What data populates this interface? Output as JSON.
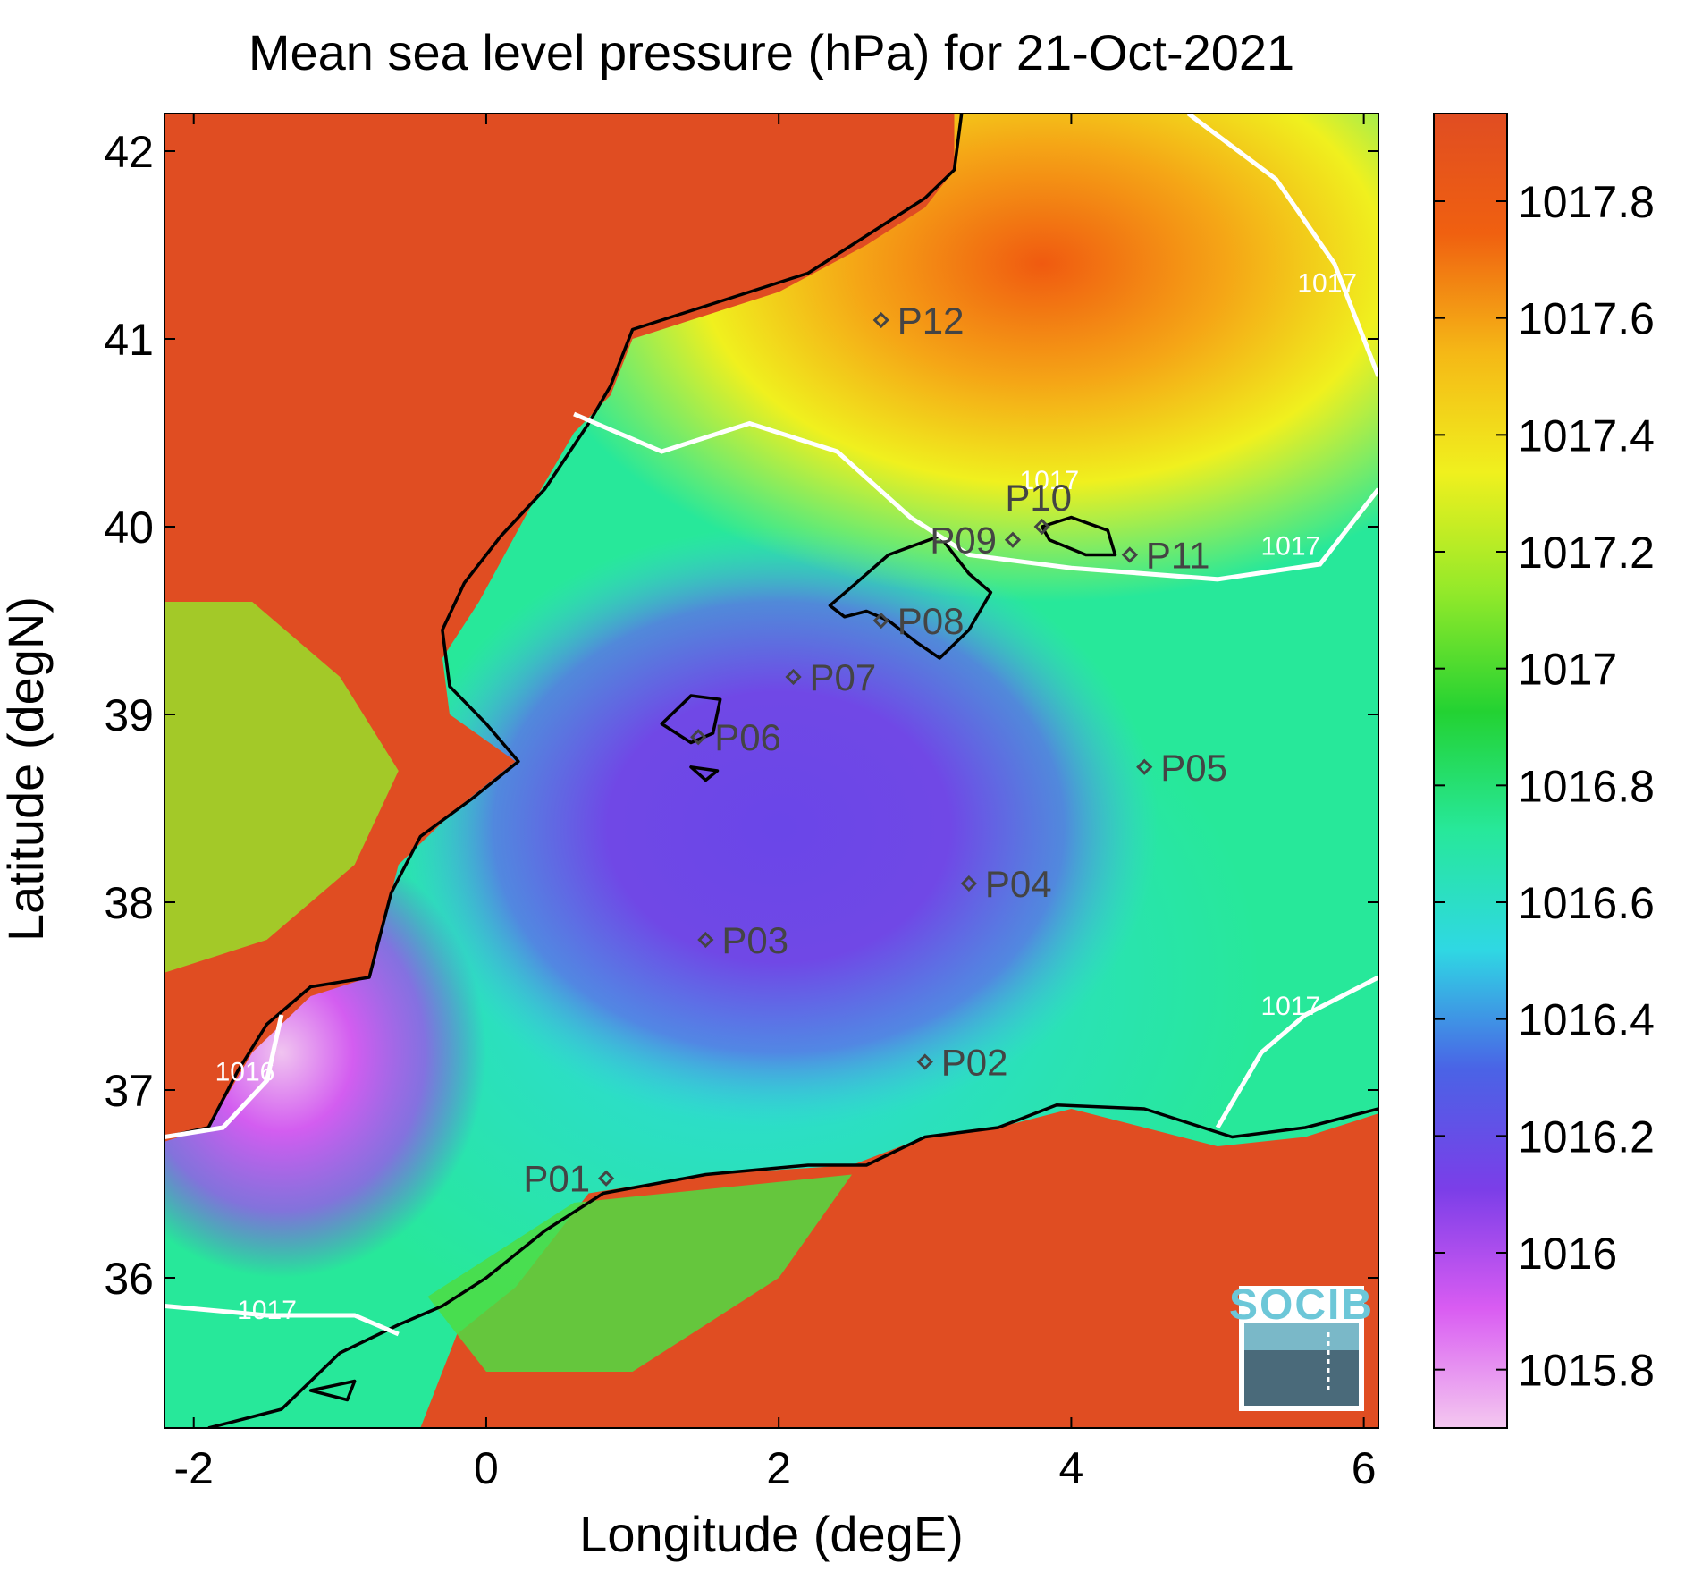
{
  "title": "Mean sea level pressure (hPa) for 21-Oct-2021",
  "x_axis": {
    "label": "Longitude (degE)",
    "range": [
      -2.2,
      6.1
    ],
    "ticks": [
      {
        "value": -2,
        "label": "-2"
      },
      {
        "value": 0,
        "label": "0"
      },
      {
        "value": 2,
        "label": "2"
      },
      {
        "value": 4,
        "label": "4"
      },
      {
        "value": 6,
        "label": "6"
      }
    ]
  },
  "y_axis": {
    "label": "Latitude (degN)",
    "range": [
      35.2,
      42.2
    ],
    "ticks": [
      {
        "value": 36,
        "label": "36"
      },
      {
        "value": 37,
        "label": "37"
      },
      {
        "value": 38,
        "label": "38"
      },
      {
        "value": 39,
        "label": "39"
      },
      {
        "value": 40,
        "label": "40"
      },
      {
        "value": 41,
        "label": "41"
      },
      {
        "value": 42,
        "label": "42"
      }
    ]
  },
  "colorbar": {
    "range": [
      1015.7,
      1017.95
    ],
    "ticks": [
      {
        "value": 1015.8,
        "label": "1015.8"
      },
      {
        "value": 1016.0,
        "label": "1016"
      },
      {
        "value": 1016.2,
        "label": "1016.2"
      },
      {
        "value": 1016.4,
        "label": "1016.4"
      },
      {
        "value": 1016.6,
        "label": "1016.6"
      },
      {
        "value": 1016.8,
        "label": "1016.8"
      },
      {
        "value": 1017.0,
        "label": "1017"
      },
      {
        "value": 1017.2,
        "label": "1017.2"
      },
      {
        "value": 1017.4,
        "label": "1017.4"
      },
      {
        "value": 1017.6,
        "label": "1017.6"
      },
      {
        "value": 1017.8,
        "label": "1017.8"
      }
    ],
    "colors": [
      "#f4c8f0",
      "#d95cf2",
      "#7b3ee8",
      "#4a63e6",
      "#2fd8e3",
      "#27e89a",
      "#23d232",
      "#93e92a",
      "#f0f01e",
      "#f5b816",
      "#f06010",
      "#e04d22"
    ]
  },
  "stations": [
    {
      "name": "P01",
      "lon": 0.82,
      "lat": 36.53,
      "label_side": "left"
    },
    {
      "name": "P02",
      "lon": 3.0,
      "lat": 37.15,
      "label_side": "right"
    },
    {
      "name": "P03",
      "lon": 1.5,
      "lat": 37.8,
      "label_side": "right"
    },
    {
      "name": "P04",
      "lon": 3.3,
      "lat": 38.1,
      "label_side": "right"
    },
    {
      "name": "P05",
      "lon": 4.5,
      "lat": 38.72,
      "label_side": "right"
    },
    {
      "name": "P06",
      "lon": 1.45,
      "lat": 38.88,
      "label_side": "right"
    },
    {
      "name": "P07",
      "lon": 2.1,
      "lat": 39.2,
      "label_side": "right"
    },
    {
      "name": "P08",
      "lon": 2.7,
      "lat": 39.5,
      "label_side": "right"
    },
    {
      "name": "P09",
      "lon": 3.6,
      "lat": 39.93,
      "label_side": "left"
    },
    {
      "name": "P10",
      "lon": 3.8,
      "lat": 40.0,
      "label_side": "above"
    },
    {
      "name": "P11",
      "lon": 4.4,
      "lat": 39.85,
      "label_side": "right"
    },
    {
      "name": "P12",
      "lon": 2.7,
      "lat": 41.1,
      "label_side": "right"
    }
  ],
  "contours": [
    {
      "level_label": "1017",
      "label_lon": 3.85,
      "label_lat": 40.2
    },
    {
      "level_label": "1017",
      "label_lon": 5.75,
      "label_lat": 41.25
    },
    {
      "level_label": "1017",
      "label_lon": 5.5,
      "label_lat": 39.85
    },
    {
      "level_label": "1017",
      "label_lon": 5.5,
      "label_lat": 37.4
    },
    {
      "level_label": "1017",
      "label_lon": -1.5,
      "label_lat": 35.78
    },
    {
      "level_label": "1016",
      "label_lon": -1.65,
      "label_lat": 37.05
    }
  ],
  "logo": {
    "text": "SOCIB"
  }
}
